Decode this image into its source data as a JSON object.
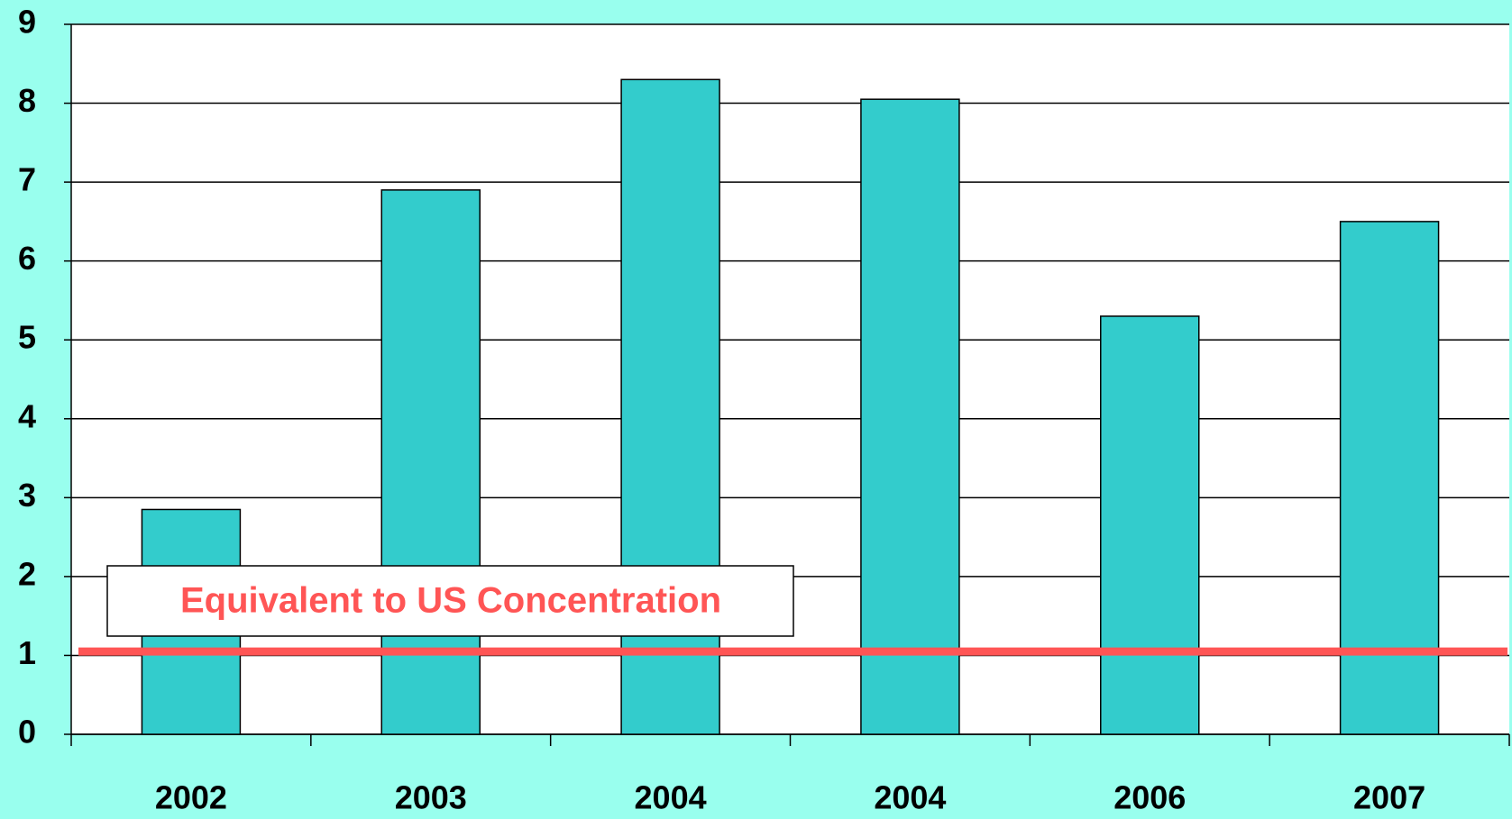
{
  "chart_data": {
    "type": "bar",
    "categories": [
      "2002",
      "2003",
      "2004",
      "2004",
      "2006",
      "2007"
    ],
    "values": [
      2.85,
      6.9,
      8.3,
      8.05,
      5.3,
      6.5
    ],
    "color": "#33cccc",
    "ylim": [
      0,
      9
    ],
    "yticks": [
      0,
      1,
      2,
      3,
      4,
      5,
      6,
      7,
      8,
      9
    ],
    "grid": true,
    "reference_line": {
      "value": 1.05,
      "label": "Equivalent to US Concentration",
      "color": "#ff5555"
    }
  }
}
